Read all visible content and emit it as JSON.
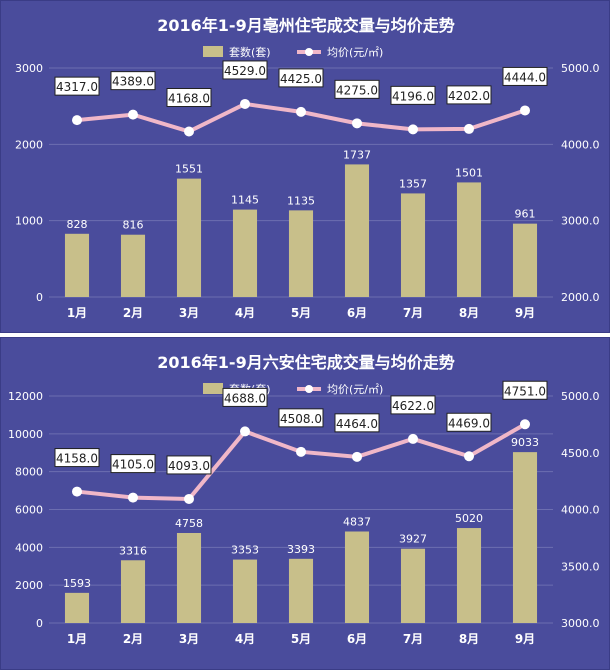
{
  "colors": {
    "background": "#4a4c9c",
    "bar": "#c8bf8a",
    "line": "#f0b7c8",
    "marker": "#ffffff"
  },
  "chart_data": [
    {
      "type": "bar",
      "title": "2016年1-9月亳州住宅成交量与均价走势",
      "categories": [
        "1月",
        "2月",
        "3月",
        "4月",
        "5月",
        "6月",
        "7月",
        "8月",
        "9月"
      ],
      "series": [
        {
          "name": "套数(套)",
          "type": "bar",
          "axis": "left",
          "values": [
            828,
            816,
            1551,
            1145,
            1135,
            1737,
            1357,
            1501,
            961
          ]
        },
        {
          "name": "均价(元/㎡)",
          "type": "line",
          "axis": "right",
          "values": [
            4317.0,
            4389.0,
            4168.0,
            4529.0,
            4425.0,
            4275.0,
            4196.0,
            4202.0,
            4444.0
          ]
        }
      ],
      "y_left": {
        "min": 0,
        "max": 3000,
        "ticks": [
          "0",
          "1000",
          "2000",
          "3000"
        ]
      },
      "y_right": {
        "min": 2000,
        "max": 5000,
        "ticks": [
          "2000.0",
          "3000.0",
          "4000.0",
          "5000.0"
        ]
      },
      "grid": true,
      "legend_position": "top"
    },
    {
      "type": "bar",
      "title": "2016年1-9月六安住宅成交量与均价走势",
      "categories": [
        "1月",
        "2月",
        "3月",
        "4月",
        "5月",
        "6月",
        "7月",
        "8月",
        "9月"
      ],
      "series": [
        {
          "name": "套数(套)",
          "type": "bar",
          "axis": "left",
          "values": [
            1593,
            3316,
            4758,
            3353,
            3393,
            4837,
            3927,
            5020,
            9033
          ]
        },
        {
          "name": "均价(元/㎡)",
          "type": "line",
          "axis": "right",
          "values": [
            4158.0,
            4105.0,
            4093.0,
            4688.0,
            4508.0,
            4464.0,
            4622.0,
            4469.0,
            4751.0
          ]
        }
      ],
      "y_left": {
        "min": 0,
        "max": 12000,
        "ticks": [
          "0",
          "2000",
          "4000",
          "6000",
          "8000",
          "10000",
          "12000"
        ]
      },
      "y_right": {
        "min": 3000,
        "max": 5000,
        "ticks": [
          "3000.0",
          "3500.0",
          "4000.0",
          "4500.0",
          "5000.0"
        ]
      },
      "grid": true,
      "legend_position": "top"
    }
  ]
}
